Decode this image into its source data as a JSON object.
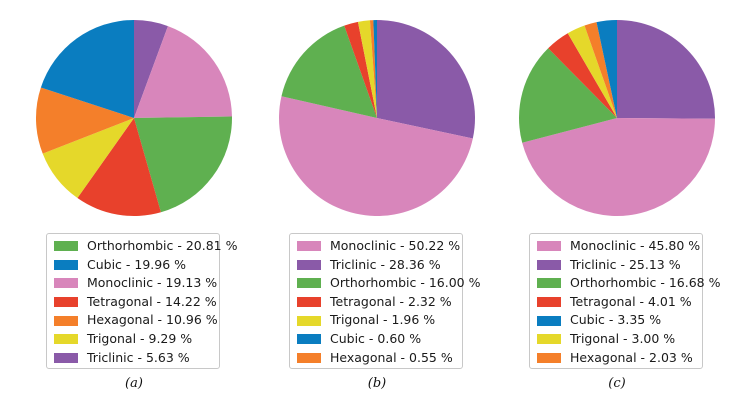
{
  "colors": {
    "Orthorhombic": "#5fb050",
    "Cubic": "#0a7dc0",
    "Monoclinic": "#d886bb",
    "Tetragonal": "#e8412c",
    "Hexagonal": "#f47f2a",
    "Trigonal": "#e5d82a",
    "Triclinic": "#8a5aa8"
  },
  "chart_data": [
    {
      "type": "pie",
      "caption": "(a)",
      "start_angle_deg": 90,
      "direction": "clockwise",
      "legend_position": "below",
      "slices": [
        {
          "label": "Orthorhombic",
          "value": 20.81,
          "legend": "Orthorhombic - 20.81 %"
        },
        {
          "label": "Cubic",
          "value": 19.96,
          "legend": "Cubic - 19.96 %"
        },
        {
          "label": "Monoclinic",
          "value": 19.13,
          "legend": "Monoclinic - 19.13 %"
        },
        {
          "label": "Tetragonal",
          "value": 14.22,
          "legend": "Tetragonal - 14.22 %"
        },
        {
          "label": "Hexagonal",
          "value": 10.96,
          "legend": "Hexagonal - 10.96 %"
        },
        {
          "label": "Trigonal",
          "value": 9.29,
          "legend": "Trigonal - 9.29 %"
        },
        {
          "label": "Triclinic",
          "value": 5.63,
          "legend": "Triclinic - 5.63 %"
        }
      ],
      "draw_order": [
        "Triclinic",
        "Monoclinic",
        "Orthorhombic",
        "Tetragonal",
        "Trigonal",
        "Hexagonal",
        "Cubic"
      ]
    },
    {
      "type": "pie",
      "caption": "(b)",
      "start_angle_deg": 90,
      "direction": "clockwise",
      "legend_position": "below",
      "slices": [
        {
          "label": "Monoclinic",
          "value": 50.22,
          "legend": "Monoclinic - 50.22 %"
        },
        {
          "label": "Triclinic",
          "value": 28.36,
          "legend": "Triclinic - 28.36 %"
        },
        {
          "label": "Orthorhombic",
          "value": 16.0,
          "legend": "Orthorhombic - 16.00 %"
        },
        {
          "label": "Tetragonal",
          "value": 2.32,
          "legend": "Tetragonal - 2.32 %"
        },
        {
          "label": "Trigonal",
          "value": 1.96,
          "legend": "Trigonal - 1.96 %"
        },
        {
          "label": "Cubic",
          "value": 0.6,
          "legend": "Cubic - 0.60 %"
        },
        {
          "label": "Hexagonal",
          "value": 0.55,
          "legend": "Hexagonal - 0.55 %"
        }
      ],
      "draw_order": [
        "Triclinic",
        "Monoclinic",
        "Orthorhombic",
        "Tetragonal",
        "Trigonal",
        "Hexagonal",
        "Cubic"
      ]
    },
    {
      "type": "pie",
      "caption": "(c)",
      "start_angle_deg": 90,
      "direction": "clockwise",
      "legend_position": "below",
      "slices": [
        {
          "label": "Monoclinic",
          "value": 45.8,
          "legend": "Monoclinic - 45.80 %"
        },
        {
          "label": "Triclinic",
          "value": 25.13,
          "legend": "Triclinic - 25.13 %"
        },
        {
          "label": "Orthorhombic",
          "value": 16.68,
          "legend": "Orthorhombic - 16.68 %"
        },
        {
          "label": "Tetragonal",
          "value": 4.01,
          "legend": "Tetragonal - 4.01 %"
        },
        {
          "label": "Cubic",
          "value": 3.35,
          "legend": "Cubic - 3.35 %"
        },
        {
          "label": "Trigonal",
          "value": 3.0,
          "legend": "Trigonal - 3.00 %"
        },
        {
          "label": "Hexagonal",
          "value": 2.03,
          "legend": "Hexagonal - 2.03 %"
        }
      ],
      "draw_order": [
        "Triclinic",
        "Monoclinic",
        "Orthorhombic",
        "Tetragonal",
        "Trigonal",
        "Hexagonal",
        "Cubic"
      ]
    }
  ]
}
